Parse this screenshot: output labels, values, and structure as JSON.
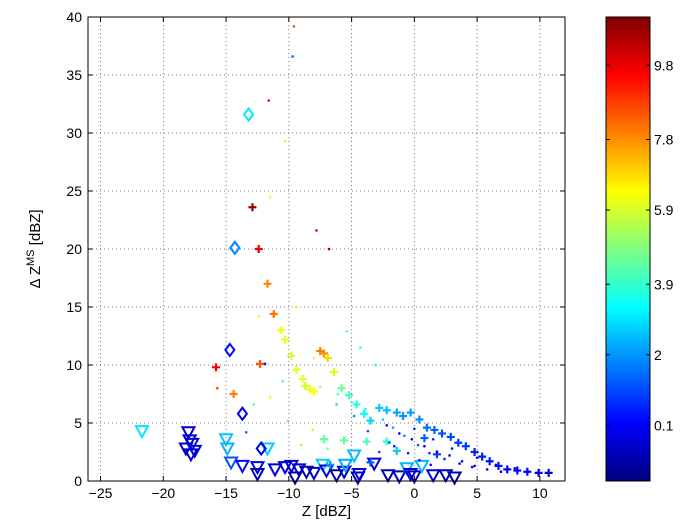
{
  "chart_data": {
    "type": "scatter",
    "xlabel": "Z  [dBZ]",
    "ylabel_prefix": "Δ Z",
    "ylabel_sup": "MS",
    "ylabel_suffix": " [dBZ]",
    "xlim": [
      -26,
      12
    ],
    "ylim": [
      0,
      40
    ],
    "xticks": [
      -25,
      -20,
      -15,
      -10,
      -5,
      0,
      5,
      10
    ],
    "yticks": [
      0,
      5,
      10,
      15,
      20,
      25,
      30,
      35,
      40
    ],
    "grid": true,
    "colorbar": {
      "min": -1.4,
      "max": 11.1,
      "ticks": [
        0.1,
        2,
        3.9,
        5.9,
        7.8,
        9.8
      ],
      "tick_labels": [
        "0.1",
        "2",
        "3.9",
        "5.9",
        "7.8",
        "9.8"
      ],
      "colormap": "jet"
    },
    "series": [
      {
        "marker": "triangle-down",
        "points": [
          [
            -21.7,
            4.3,
            3.0
          ],
          [
            -18.0,
            4.2,
            -0.5
          ],
          [
            -17.9,
            3.5,
            -0.4
          ],
          [
            -17.7,
            3.2,
            -0.3
          ],
          [
            -18.2,
            2.8,
            -0.6
          ],
          [
            -17.8,
            2.3,
            -0.5
          ],
          [
            -17.5,
            2.6,
            -0.2
          ],
          [
            -15.0,
            3.6,
            2.6
          ],
          [
            -14.9,
            2.8,
            2.4
          ],
          [
            -14.6,
            1.6,
            1.2
          ],
          [
            -13.7,
            1.3,
            0.2
          ],
          [
            -12.5,
            1.2,
            0.0
          ],
          [
            -11.7,
            2.8,
            2.7
          ],
          [
            -11.1,
            1.0,
            -0.3
          ],
          [
            -10.3,
            1.2,
            -0.3
          ],
          [
            -9.8,
            1.3,
            -0.2
          ],
          [
            -9.2,
            1.0,
            -0.5
          ],
          [
            -8.6,
            0.8,
            -0.8
          ],
          [
            -8.0,
            0.7,
            -0.5
          ],
          [
            -7.3,
            1.4,
            2.7
          ],
          [
            -7.0,
            0.9,
            -0.2
          ],
          [
            -6.2,
            0.5,
            -0.9
          ],
          [
            -5.6,
            0.8,
            -0.6
          ],
          [
            -5.5,
            1.4,
            2.3
          ],
          [
            -4.8,
            2.2,
            2.5
          ],
          [
            -4.5,
            0.3,
            -0.9
          ],
          [
            -4.4,
            0.6,
            -0.3
          ],
          [
            -3.2,
            1.5,
            -0.4
          ],
          [
            -2.1,
            0.5,
            -0.8
          ],
          [
            -1.2,
            0.4,
            -0.6
          ],
          [
            -0.6,
            1.1,
            2.4
          ],
          [
            -0.3,
            0.6,
            -0.2
          ],
          [
            0.0,
            0.4,
            -0.8
          ],
          [
            0.6,
            1.3,
            2.4
          ],
          [
            1.5,
            0.5,
            -0.6
          ],
          [
            2.5,
            0.5,
            -0.7
          ],
          [
            3.2,
            0.3,
            -0.9
          ],
          [
            -12.5,
            0.6,
            -0.8
          ],
          [
            -9.5,
            0.3,
            -1.0
          ]
        ]
      },
      {
        "marker": "diamond",
        "points": [
          [
            -13.2,
            31.6,
            3.0
          ],
          [
            -14.3,
            20.1,
            1.8
          ],
          [
            -14.7,
            11.3,
            0.3
          ],
          [
            -13.7,
            5.8,
            0.1
          ],
          [
            -12.2,
            2.8,
            -0.1
          ]
        ]
      },
      {
        "marker": "plus",
        "points": [
          [
            -12.9,
            23.6,
            10.8
          ],
          [
            -12.4,
            20.0,
            9.7
          ],
          [
            -11.7,
            17.0,
            7.9
          ],
          [
            -11.2,
            14.4,
            8.1
          ],
          [
            -10.6,
            13.0,
            6.2
          ],
          [
            -10.3,
            12.2,
            6.1
          ],
          [
            -9.8,
            10.8,
            5.8
          ],
          [
            -9.4,
            9.6,
            6.1
          ],
          [
            -8.9,
            8.8,
            6.0
          ],
          [
            -8.7,
            8.2,
            5.9
          ],
          [
            -8.3,
            7.9,
            6.2
          ],
          [
            -8.0,
            7.7,
            6.4
          ],
          [
            -7.5,
            11.2,
            8.0
          ],
          [
            -7.2,
            11.0,
            7.8
          ],
          [
            -6.9,
            10.6,
            6.9
          ],
          [
            -6.4,
            9.4,
            5.9
          ],
          [
            -5.8,
            8.0,
            4.6
          ],
          [
            -5.2,
            7.4,
            4.1
          ],
          [
            -4.6,
            6.6,
            3.6
          ],
          [
            -4.0,
            5.8,
            3.3
          ],
          [
            -3.5,
            5.2,
            2.8
          ],
          [
            -2.8,
            6.3,
            2.6
          ],
          [
            -2.2,
            6.1,
            2.5
          ],
          [
            -1.4,
            5.9,
            2.2
          ],
          [
            -0.9,
            5.6,
            2.0
          ],
          [
            -0.3,
            5.9,
            2.1
          ],
          [
            0.4,
            5.3,
            1.9
          ],
          [
            1.0,
            4.6,
            1.5
          ],
          [
            1.6,
            4.4,
            1.3
          ],
          [
            2.2,
            4.1,
            1.1
          ],
          [
            2.9,
            3.8,
            1.0
          ],
          [
            3.5,
            3.3,
            0.9
          ],
          [
            4.1,
            3.0,
            0.8
          ],
          [
            4.8,
            2.5,
            0.6
          ],
          [
            5.4,
            2.1,
            0.5
          ],
          [
            6.0,
            1.7,
            0.4
          ],
          [
            6.7,
            1.3,
            0.3
          ],
          [
            7.4,
            1.0,
            0.2
          ],
          [
            8.2,
            0.9,
            0.1
          ],
          [
            9.0,
            0.8,
            0.0
          ],
          [
            9.9,
            0.7,
            -0.1
          ],
          [
            10.7,
            0.7,
            -0.2
          ],
          [
            -15.8,
            9.8,
            9.6
          ],
          [
            -14.4,
            7.5,
            8.0
          ],
          [
            -12.3,
            10.1,
            8.5
          ],
          [
            -7.2,
            3.6,
            4.4
          ],
          [
            -5.6,
            3.5,
            4.5
          ],
          [
            -3.8,
            3.4,
            4.3
          ],
          [
            -2.2,
            3.4,
            3.8
          ],
          [
            -1.4,
            2.6,
            2.7
          ],
          [
            0.8,
            3.7,
            1.3
          ],
          [
            1.8,
            2.3,
            0.9
          ],
          [
            -3.5,
            1.6,
            1.2
          ],
          [
            -6.7,
            1.4,
            2.0
          ]
        ]
      },
      {
        "marker": "dot",
        "points": [
          [
            -9.6,
            39.2,
            8.5
          ],
          [
            -9.7,
            36.6,
            1.5
          ],
          [
            -11.6,
            32.8,
            9.6
          ],
          [
            -10.3,
            29.3,
            6.2
          ],
          [
            -7.8,
            21.6,
            9.7
          ],
          [
            -6.8,
            20.0,
            10.9
          ],
          [
            -11.5,
            24.5,
            6.3
          ],
          [
            -12.4,
            14.2,
            6.0
          ],
          [
            -9.4,
            15.0,
            6.8
          ],
          [
            -11.9,
            10.1,
            0.4
          ],
          [
            -8.0,
            10.6,
            6.1
          ],
          [
            -5.4,
            12.9,
            4.4
          ],
          [
            -4.3,
            11.5,
            4.1
          ],
          [
            -3.1,
            10.0,
            3.6
          ],
          [
            -10.5,
            8.6,
            4.2
          ],
          [
            -7.5,
            8.1,
            5.4
          ],
          [
            -6.1,
            7.5,
            4.3
          ],
          [
            -5.0,
            6.8,
            3.7
          ],
          [
            -3.9,
            6.2,
            3.4
          ],
          [
            -2.5,
            5.3,
            2.8
          ],
          [
            -1.7,
            4.6,
            2.2
          ],
          [
            -0.8,
            3.9,
            1.8
          ],
          [
            0.3,
            3.1,
            1.2
          ],
          [
            1.2,
            2.4,
            0.8
          ],
          [
            2.4,
            1.9,
            0.6
          ],
          [
            3.6,
            1.5,
            0.4
          ],
          [
            4.6,
            1.2,
            0.2
          ],
          [
            5.8,
            1.0,
            0.1
          ],
          [
            6.9,
            0.8,
            0.0
          ],
          [
            -2.2,
            4.8,
            0.3
          ],
          [
            -1.2,
            4.1,
            0.2
          ],
          [
            -0.2,
            3.6,
            0.1
          ],
          [
            0.8,
            3.0,
            0.0
          ],
          [
            1.8,
            2.5,
            -0.1
          ],
          [
            2.8,
            2.2,
            -0.2
          ],
          [
            3.8,
            1.7,
            -0.3
          ],
          [
            4.8,
            1.3,
            -0.4
          ],
          [
            -1.6,
            3.0,
            0.5
          ],
          [
            -0.5,
            2.4,
            0.4
          ],
          [
            0.4,
            1.8,
            0.3
          ],
          [
            1.3,
            1.4,
            0.2
          ],
          [
            -2.8,
            2.5,
            0.9
          ],
          [
            -3.7,
            4.3,
            1.1
          ],
          [
            -4.8,
            5.6,
            1.9
          ],
          [
            -15.7,
            8.0,
            8.6
          ],
          [
            -11.5,
            7.2,
            6.3
          ],
          [
            -9.0,
            3.1,
            5.2
          ],
          [
            -8.1,
            4.4,
            5.5
          ],
          [
            -6.9,
            2.8,
            4.6
          ],
          [
            -10.1,
            5.2,
            4.8
          ],
          [
            -12.8,
            6.6,
            4.5
          ],
          [
            -13.4,
            4.2,
            1.3
          ],
          [
            -6.2,
            6.6,
            3.0
          ],
          [
            -2.0,
            3.3,
            1.5
          ],
          [
            0.0,
            4.5,
            0.6
          ],
          [
            1.5,
            3.6,
            0.5
          ],
          [
            3.0,
            2.8,
            0.3
          ],
          [
            5.0,
            2.0,
            0.2
          ],
          [
            6.5,
            1.4,
            0.1
          ],
          [
            8.0,
            1.1,
            0.0
          ]
        ]
      }
    ]
  }
}
